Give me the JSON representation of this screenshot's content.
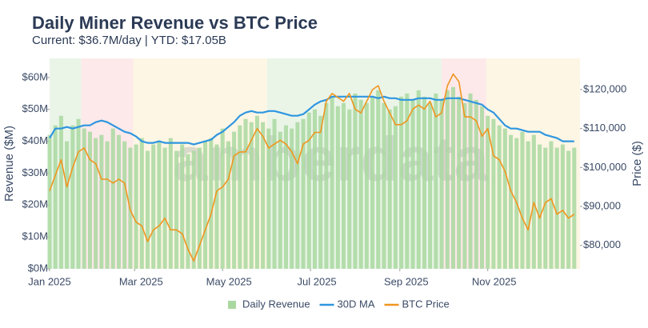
{
  "chart_data": {
    "type": "combo",
    "title": "Daily Miner Revenue vs BTC Price",
    "subtitle": "Current: $36.7M/day | YTD: $17.05B",
    "y_label": "Revenue ($M)",
    "y2_label": "Price ($)",
    "watermark": "amberdata",
    "x": [
      0,
      4,
      8,
      12,
      16,
      20,
      24,
      28,
      32,
      36,
      40,
      44,
      48,
      52,
      56,
      60,
      64,
      68,
      72,
      76,
      80,
      84,
      88,
      92,
      96,
      100,
      104,
      108,
      112,
      116,
      120,
      124,
      128,
      132,
      136,
      140,
      144,
      148,
      152,
      156,
      160,
      164,
      168,
      172,
      176,
      180,
      184,
      188,
      192,
      196,
      200,
      204,
      208,
      212,
      216,
      220,
      224,
      228,
      232,
      236,
      240,
      244,
      248,
      252,
      256,
      260,
      264,
      268,
      272,
      276,
      280,
      284,
      288,
      292,
      296,
      300,
      304,
      308,
      312,
      316,
      320,
      324,
      328,
      332,
      336,
      340,
      344,
      348,
      352,
      356,
      360,
      364
    ],
    "xlim": [
      0,
      368
    ],
    "xticks": [
      {
        "value": 0,
        "label": "Jan 2025"
      },
      {
        "value": 59,
        "label": "Mar 2025"
      },
      {
        "value": 120,
        "label": "May 2025"
      },
      {
        "value": 181,
        "label": "Jul 2025"
      },
      {
        "value": 243,
        "label": "Sep 2025"
      },
      {
        "value": 304,
        "label": "Nov 2025"
      }
    ],
    "ylim": [
      0,
      66
    ],
    "yticks": [
      {
        "value": 0,
        "label": "$0M"
      },
      {
        "value": 10,
        "label": "$10M"
      },
      {
        "value": 20,
        "label": "$20M"
      },
      {
        "value": 30,
        "label": "$30M"
      },
      {
        "value": 40,
        "label": "$40M"
      },
      {
        "value": 50,
        "label": "$50M"
      },
      {
        "value": 60,
        "label": "$60M"
      }
    ],
    "y2lim": [
      74000,
      128000
    ],
    "y2ticks": [
      {
        "value": 80000,
        "label": "$80,000"
      },
      {
        "value": 90000,
        "label": "$90,000"
      },
      {
        "value": 100000,
        "label": "$100,000"
      },
      {
        "value": 110000,
        "label": "$110,000"
      },
      {
        "value": 120000,
        "label": "$120,000"
      }
    ],
    "shading": [
      {
        "start": 0,
        "end": 22,
        "color": "#eaf5e8"
      },
      {
        "start": 22,
        "end": 58,
        "color": "#fde9e9"
      },
      {
        "start": 58,
        "end": 151,
        "color": "#fdf6e4"
      },
      {
        "start": 151,
        "end": 272,
        "color": "#eaf5e8"
      },
      {
        "start": 272,
        "end": 303,
        "color": "#fde9e9"
      },
      {
        "start": 303,
        "end": 368,
        "color": "#fdf6e4"
      }
    ],
    "series": [
      {
        "name": "Daily Revenue",
        "type": "bar",
        "color": "#a9d8a0",
        "values": [
          42,
          45,
          48,
          40,
          45,
          47,
          44,
          43,
          41,
          42,
          40,
          44,
          42,
          40,
          38,
          39,
          41,
          37,
          39,
          40,
          38,
          41,
          37,
          39,
          36,
          37,
          38,
          40,
          41,
          39,
          44,
          40,
          43,
          45,
          47,
          46,
          48,
          46,
          44,
          47,
          43,
          45,
          44,
          46,
          47,
          49,
          50,
          48,
          52,
          54,
          51,
          52,
          50,
          55,
          53,
          52,
          54,
          56,
          52,
          50,
          51,
          54,
          55,
          53,
          56,
          54,
          52,
          55,
          53,
          56,
          57,
          54,
          52,
          55,
          53,
          51,
          48,
          47,
          45,
          44,
          42,
          41,
          43,
          40,
          42,
          39,
          38,
          40,
          38,
          39,
          37,
          38
        ]
      },
      {
        "name": "30D MA",
        "type": "line",
        "color": "#2e96e0",
        "values": [
          41,
          44,
          44,
          44.5,
          44,
          44.5,
          45,
          45,
          46,
          46.5,
          46,
          45,
          44,
          43,
          42.5,
          41.5,
          40,
          39.5,
          39.5,
          40,
          39.5,
          39.5,
          39.5,
          39.5,
          39.5,
          39,
          39.5,
          40,
          40.5,
          42,
          43,
          44.5,
          46,
          48,
          49,
          49.5,
          49,
          49,
          49.5,
          49.5,
          49,
          48.5,
          48,
          48,
          48.5,
          50,
          51.5,
          52.5,
          53,
          54,
          54,
          54,
          54,
          54,
          54,
          54,
          54,
          53.5,
          54,
          53.5,
          53.5,
          53,
          53,
          53,
          53.5,
          53.5,
          53.5,
          53,
          53,
          53.5,
          53.5,
          53.5,
          53,
          52.5,
          52,
          51.5,
          50,
          49,
          47,
          45,
          44,
          44,
          43.5,
          43,
          43,
          43,
          42,
          41.5,
          41,
          40,
          40,
          40
        ]
      },
      {
        "name": "BTC Price",
        "type": "line",
        "axis": "y2",
        "color": "#f0951f",
        "values": [
          94000,
          98000,
          102000,
          95000,
          100000,
          104000,
          105000,
          102000,
          101000,
          97000,
          97000,
          96000,
          97000,
          96000,
          89000,
          86000,
          85000,
          81000,
          84000,
          85000,
          87000,
          84000,
          84000,
          83000,
          79000,
          76000,
          80000,
          84000,
          88000,
          94000,
          95000,
          97000,
          103000,
          104000,
          104000,
          107000,
          110000,
          108000,
          105000,
          106000,
          107000,
          106000,
          104000,
          101000,
          106000,
          107000,
          109000,
          109000,
          117000,
          119000,
          118000,
          117000,
          119000,
          115000,
          114000,
          117000,
          120000,
          121000,
          117000,
          114000,
          111000,
          111000,
          112000,
          115000,
          116000,
          115000,
          117000,
          113000,
          114000,
          121000,
          124000,
          122000,
          113000,
          113000,
          112000,
          108000,
          110000,
          103000,
          102000,
          99000,
          94000,
          91000,
          87000,
          84000,
          91000,
          87000,
          91000,
          92000,
          88000,
          89000,
          87000,
          88000
        ]
      }
    ]
  }
}
